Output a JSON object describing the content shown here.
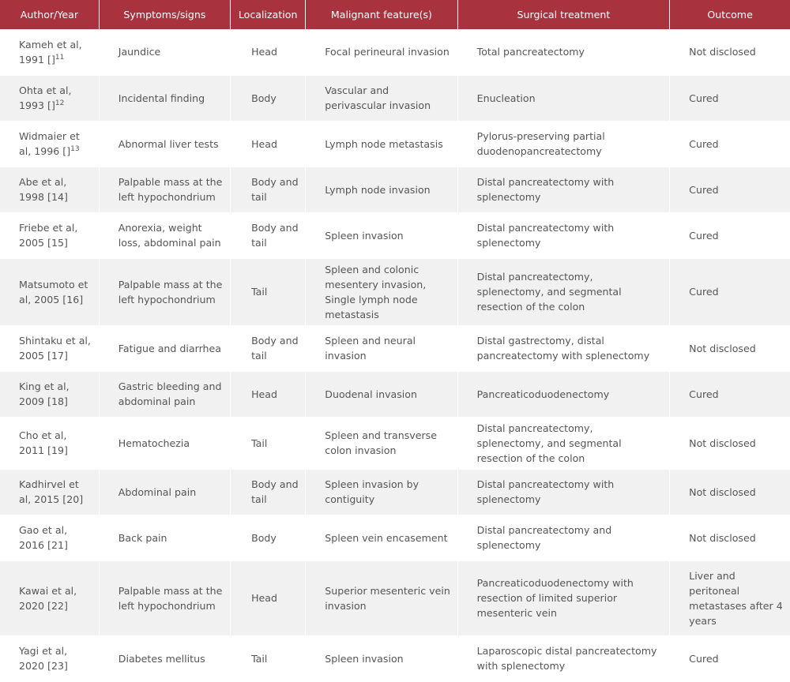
{
  "headers": [
    "Author/Year",
    "Symptoms/signs",
    "Localization",
    "Malignant feature(s)",
    "Surgical treatment",
    "Outcome"
  ],
  "rows": [
    {
      "author": "Kameh et al, 1991 []",
      "sup": "11",
      "symptoms": "Jaundice",
      "localization": "Head",
      "malignant": "Focal perineural invasion",
      "surgery": "Total pancreatectomy",
      "outcome": "Not disclosed"
    },
    {
      "author": "Ohta et al, 1993 []",
      "sup": "12",
      "symptoms": "Incidental finding",
      "localization": "Body",
      "malignant": "Vascular and perivascular invasion",
      "surgery": "Enucleation",
      "outcome": "Cured"
    },
    {
      "author": "Widmaier et al, 1996 []",
      "sup": "13",
      "symptoms": "Abnormal liver tests",
      "localization": "Head",
      "malignant": "Lymph node metastasis",
      "surgery": "Pylorus-preserving partial duodenopancreatectomy",
      "outcome": "Cured"
    },
    {
      "author": "Abe et al, 1998 [14]",
      "sup": "",
      "symptoms": "Palpable mass at the left hypochondrium",
      "localization": "Body and tail",
      "malignant": "Lymph node invasion",
      "surgery": "Distal pancreatectomy with splenectomy",
      "outcome": "Cured"
    },
    {
      "author": "Friebe et al, 2005 [15]",
      "sup": "",
      "symptoms": "Anorexia, weight loss, abdominal pain",
      "localization": "Body and tail",
      "malignant": "Spleen invasion",
      "surgery": "Distal pancreatectomy with splenectomy",
      "outcome": "Cured"
    },
    {
      "author": "Matsumoto et al, 2005 [16]",
      "sup": "",
      "symptoms": "Palpable mass at the left hypochondrium",
      "localization": "Tail",
      "malignant": "Spleen and colonic mesentery invasion, Single lymph node metastasis",
      "surgery": "Distal pancreatectomy, splenectomy, and segmental resection of the colon",
      "outcome": "Cured"
    },
    {
      "author": "Shintaku et al, 2005 [17]",
      "sup": "",
      "symptoms": "Fatigue and diarrhea",
      "localization": "Body and tail",
      "malignant": "Spleen and neural invasion",
      "surgery": "Distal gastrectomy, distal pancreatectomy with splenectomy",
      "outcome": "Not disclosed"
    },
    {
      "author": "King et al, 2009 [18]",
      "sup": "",
      "symptoms": "Gastric bleeding and abdominal pain",
      "localization": "Head",
      "malignant": "Duodenal invasion",
      "surgery": "Pancreaticoduodenectomy",
      "outcome": "Cured"
    },
    {
      "author": "Cho et al, 2011 [19]",
      "sup": "",
      "symptoms": "Hematochezia",
      "localization": "Tail",
      "malignant": "Spleen and transverse colon invasion",
      "surgery": "Distal pancreatectomy, splenectomy, and segmental resection of the colon",
      "outcome": "Not disclosed"
    },
    {
      "author": "Kadhirvel et al, 2015 [20]",
      "sup": "",
      "symptoms": "Abdominal pain",
      "localization": "Body and tail",
      "malignant": "Spleen invasion by contiguity",
      "surgery": "Distal pancreatectomy with splenectomy",
      "outcome": "Not disclosed"
    },
    {
      "author": "Gao et al, 2016 [21]",
      "sup": "",
      "symptoms": "Back pain",
      "localization": "Body",
      "malignant": "Spleen vein encasement",
      "surgery": "Distal pancreatectomy and splenectomy",
      "outcome": "Not disclosed"
    },
    {
      "author": "Kawai et al, 2020 [22]",
      "sup": "",
      "symptoms": "Palpable mass at the left hypochondrium",
      "localization": "Head",
      "malignant": "Superior mesenteric vein invasion",
      "surgery": "Pancreaticoduodenectomy with resection of limited superior mesenteric vein",
      "outcome": "Liver and peritoneal metastases after 4 years"
    },
    {
      "author": "Yagi et al, 2020 [23]",
      "sup": "",
      "symptoms": "Diabetes mellitus",
      "localization": "Tail",
      "malignant": "Spleen invasion",
      "surgery": "Laparoscopic distal pancreatectomy with splenectomy",
      "outcome": "Cured"
    }
  ]
}
